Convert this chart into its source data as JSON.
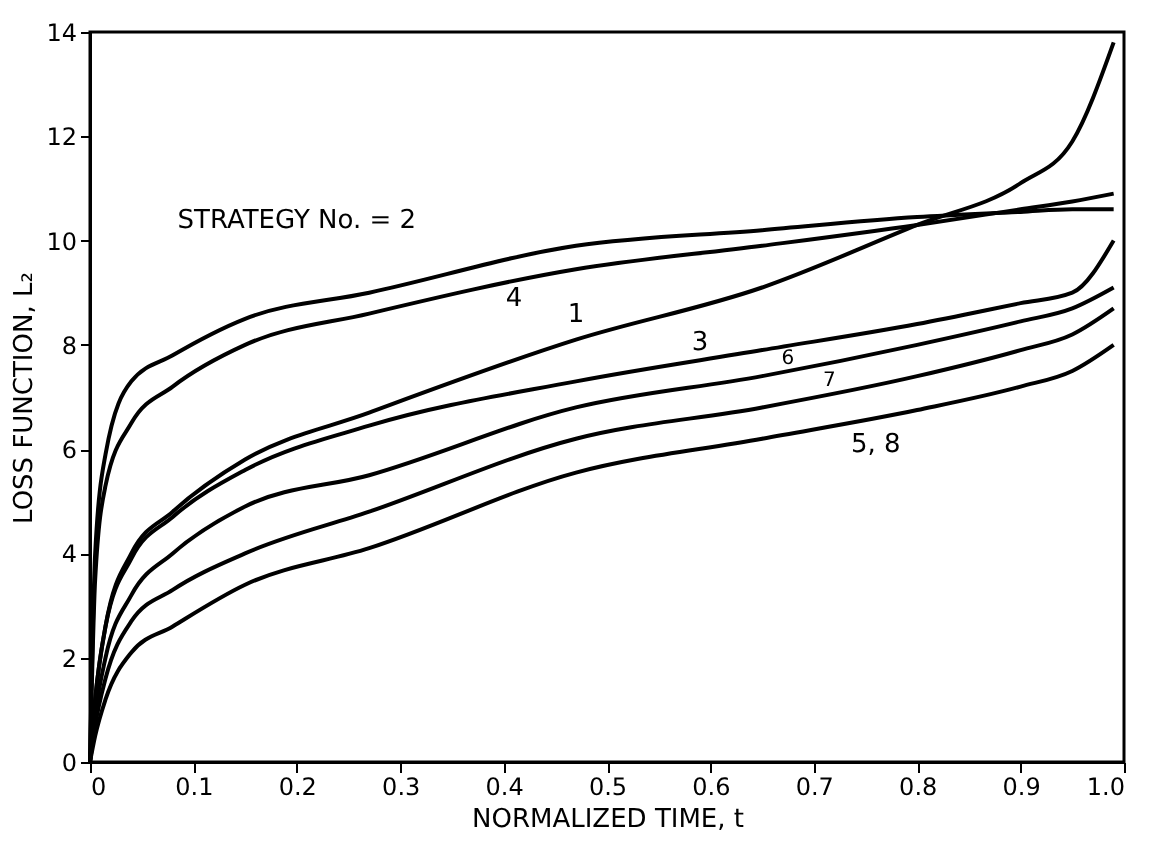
{
  "chart_data": {
    "type": "line",
    "xlabel": "NORMALIZED TIME, t",
    "ylabel": "LOSS FUNCTION, L₂",
    "x": [
      0,
      0.005,
      0.015,
      0.04,
      0.08,
      0.15,
      0.27,
      0.47,
      0.65,
      0.8,
      0.9,
      0.95,
      0.99
    ],
    "series": [
      {
        "name": "STRATEGY No. = 2",
        "color": "#000000",
        "values": [
          0,
          4.0,
          5.9,
          7.3,
          7.8,
          8.5,
          9.0,
          9.9,
          10.2,
          10.45,
          10.55,
          10.6,
          10.6
        ]
      },
      {
        "name": "4",
        "color": "#000000",
        "values": [
          0,
          3.5,
          5.3,
          6.5,
          7.2,
          8.0,
          8.6,
          9.45,
          9.9,
          10.3,
          10.6,
          10.75,
          10.9
        ]
      },
      {
        "name": "1",
        "color": "#000000",
        "values": [
          0,
          1.2,
          2.6,
          4.0,
          4.8,
          5.8,
          6.7,
          8.1,
          9.1,
          10.3,
          11.1,
          11.9,
          13.8
        ]
      },
      {
        "name": "3",
        "color": "#000000",
        "values": [
          0,
          1.2,
          2.6,
          3.9,
          4.7,
          5.6,
          6.45,
          7.3,
          7.9,
          8.4,
          8.8,
          9.0,
          10.0
        ]
      },
      {
        "name": "6",
        "color": "#000000",
        "values": [
          0,
          0.9,
          2.0,
          3.2,
          4.0,
          4.9,
          5.5,
          6.8,
          7.4,
          8.0,
          8.45,
          8.7,
          9.1
        ]
      },
      {
        "name": "7",
        "color": "#000000",
        "values": [
          0,
          0.7,
          1.6,
          2.7,
          3.3,
          4.0,
          4.8,
          6.2,
          6.8,
          7.4,
          7.9,
          8.2,
          8.7
        ]
      },
      {
        "name": "5, 8",
        "color": "#000000",
        "values": [
          0,
          0.5,
          1.2,
          2.1,
          2.6,
          3.4,
          4.1,
          5.55,
          6.2,
          6.75,
          7.2,
          7.5,
          8.0
        ]
      }
    ],
    "xlim": [
      0,
      1.0
    ],
    "ylim": [
      0,
      14
    ],
    "xticks": [
      {
        "value": 0,
        "label": "0"
      },
      0.1,
      0.2,
      0.3,
      0.4,
      0.5,
      0.6,
      0.7,
      0.8,
      0.9,
      {
        "value": 1.0,
        "label": "1.0"
      }
    ],
    "yticks": [
      0,
      2,
      4,
      6,
      8,
      10,
      12,
      14
    ],
    "grid": false,
    "legend": false,
    "marker": "none",
    "line_style": "solid"
  }
}
